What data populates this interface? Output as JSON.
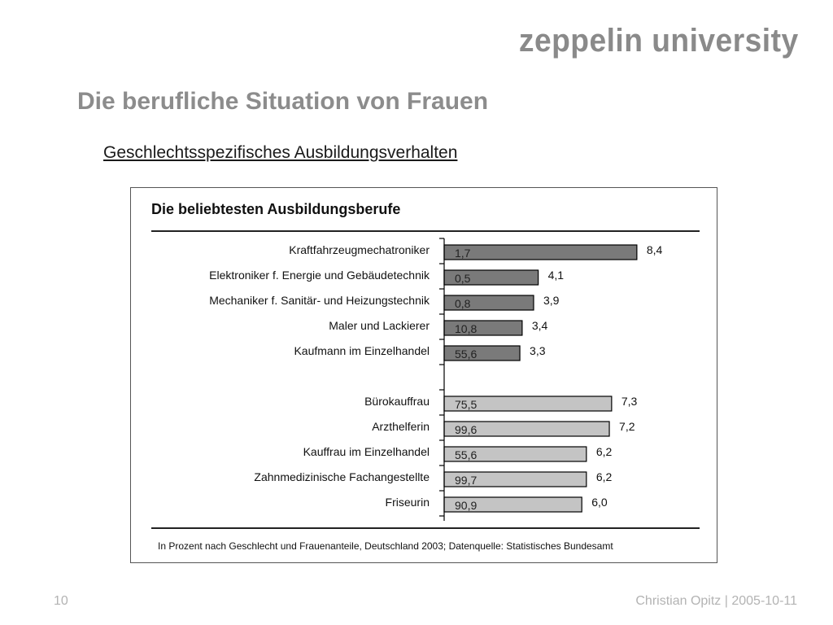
{
  "header": {
    "logo_text": "zeppelin university",
    "title": "Die berufliche Situation von Frauen",
    "subtitle": "Geschlechtsspezifisches Ausbildungsverhalten"
  },
  "chart_data": {
    "type": "bar",
    "orientation": "horizontal",
    "title": "Die beliebtesten Ausbildungsberufe",
    "xlabel": "",
    "ylabel": "",
    "grid": false,
    "footnote": "In Prozent nach Geschlecht und Frauenanteile, Deutschland 2003; Datenquelle: Statistisches Bundesamt",
    "groups": [
      {
        "color": "#7a7a7a",
        "items": [
          {
            "category": "Kraftfahrzeugmechatroniker",
            "value": 8.4,
            "value_label": "8,4",
            "inner_label": "1,7"
          },
          {
            "category": "Elektroniker f. Energie und Gebäudetechnik",
            "value": 4.1,
            "value_label": "4,1",
            "inner_label": "0,5"
          },
          {
            "category": "Mechaniker f. Sanitär- und Heizungstechnik",
            "value": 3.9,
            "value_label": "3,9",
            "inner_label": "0,8"
          },
          {
            "category": "Maler und Lackierer",
            "value": 3.4,
            "value_label": "3,4",
            "inner_label": "10,8"
          },
          {
            "category": "Kaufmann im Einzelhandel",
            "value": 3.3,
            "value_label": "3,3",
            "inner_label": "55,6"
          }
        ]
      },
      {
        "color": "#c4c4c4",
        "items": [
          {
            "category": "Bürokauffrau",
            "value": 7.3,
            "value_label": "7,3",
            "inner_label": "75,5"
          },
          {
            "category": "Arzthelferin",
            "value": 7.2,
            "value_label": "7,2",
            "inner_label": "99,6"
          },
          {
            "category": "Kauffrau im Einzelhandel",
            "value": 6.2,
            "value_label": "6,2",
            "inner_label": "55,6"
          },
          {
            "category": "Zahnmedizinische Fachangestellte",
            "value": 6.2,
            "value_label": "6,2",
            "inner_label": "99,7"
          },
          {
            "category": "Friseurin",
            "value": 6.0,
            "value_label": "6,0",
            "inner_label": "90,9"
          }
        ]
      }
    ]
  },
  "footer": {
    "page_number": "10",
    "author_date": "Christian Opitz | 2005-10-11"
  }
}
